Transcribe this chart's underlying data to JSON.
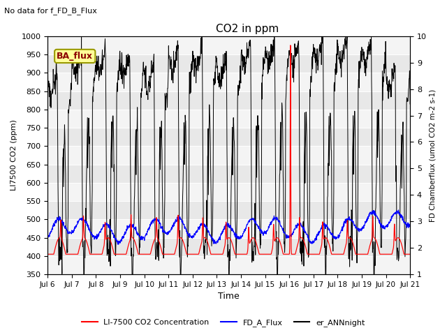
{
  "title": "CO2 in ppm",
  "top_left_text": "No data for f_FD_B_Flux",
  "legend_box_text": "BA_flux",
  "ylabel_left": "LI7500 CO2 (ppm)",
  "ylabel_right": "FD Chamberflux (umol CO2 m-2 s-1)",
  "xlabel": "Time",
  "ylim_left": [
    350,
    1000
  ],
  "ylim_right": [
    1.0,
    10.0
  ],
  "yticks_left": [
    350,
    400,
    450,
    500,
    550,
    600,
    650,
    700,
    750,
    800,
    850,
    900,
    950,
    1000
  ],
  "yticks_right": [
    1.0,
    2.0,
    3.0,
    4.0,
    5.0,
    6.0,
    7.0,
    8.0,
    9.0,
    10.0
  ],
  "xtick_labels": [
    "Jul 6",
    "Jul 7",
    "Jul 8",
    "Jul 9",
    "Jul 10",
    "Jul 11",
    "Jul 12",
    "Jul 13",
    "Jul 14",
    "Jul 15",
    "Jul 16",
    "Jul 17",
    "Jul 18",
    "Jul 19",
    "Jul 20",
    "Jul 21"
  ],
  "legend_labels": [
    "LI-7500 CO2 Concentration",
    "FD_A_Flux",
    "er_ANNnight"
  ],
  "legend_colors": [
    "red",
    "blue",
    "black"
  ],
  "plot_bg_color": "#e8e8e8",
  "figsize": [
    6.4,
    4.8
  ],
  "dpi": 100
}
